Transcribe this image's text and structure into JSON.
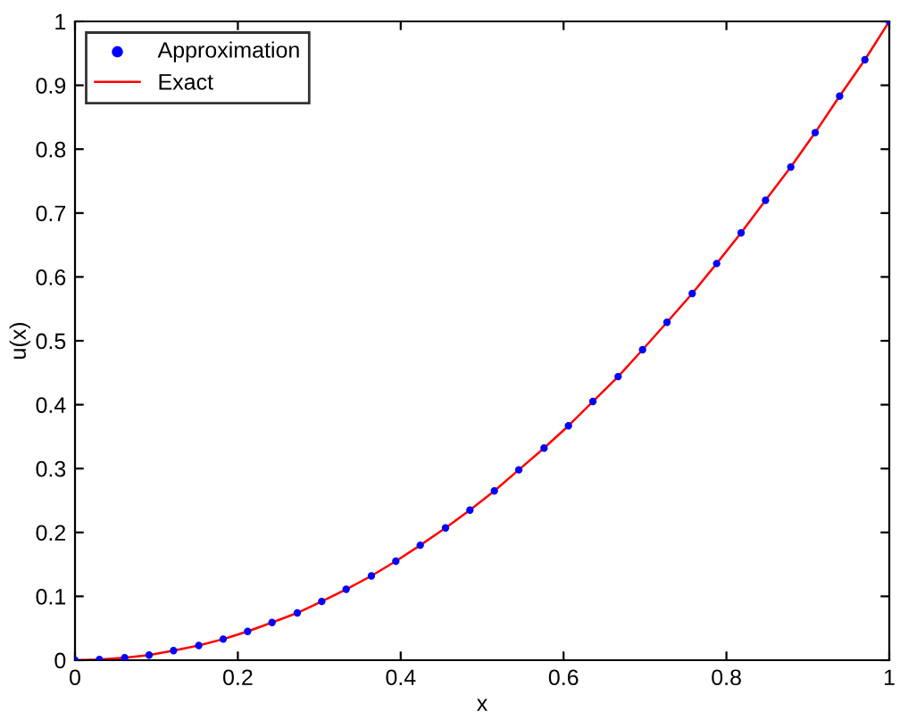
{
  "chart_data": {
    "type": "line",
    "xlabel": "x",
    "ylabel": "u(x)",
    "xlim": [
      0,
      1
    ],
    "xticks": [
      0,
      0.2,
      0.4,
      0.6,
      0.8,
      1
    ],
    "ylim": [
      0,
      1
    ],
    "yticks": [
      0,
      0.1,
      0.2,
      0.3,
      0.4,
      0.5,
      0.6,
      0.7,
      0.8,
      0.9,
      1
    ],
    "grid": false,
    "legend": "top left",
    "x": [
      0,
      0.03,
      0.061,
      0.091,
      0.121,
      0.152,
      0.182,
      0.212,
      0.242,
      0.273,
      0.303,
      0.333,
      0.364,
      0.394,
      0.424,
      0.455,
      0.485,
      0.515,
      0.545,
      0.576,
      0.606,
      0.636,
      0.667,
      0.697,
      0.727,
      0.758,
      0.788,
      0.818,
      0.848,
      0.879,
      0.909,
      0.939,
      0.97,
      1
    ],
    "series": [
      {
        "name": "Approximation",
        "type": "scatter",
        "marker": "circle",
        "color": "#0000ff",
        "values": [
          0,
          0.001,
          0.004,
          0.008,
          0.015,
          0.023,
          0.033,
          0.045,
          0.059,
          0.074,
          0.092,
          0.111,
          0.132,
          0.155,
          0.18,
          0.207,
          0.235,
          0.265,
          0.298,
          0.332,
          0.367,
          0.405,
          0.444,
          0.486,
          0.529,
          0.574,
          0.621,
          0.669,
          0.72,
          0.772,
          0.826,
          0.883,
          0.94,
          1
        ]
      },
      {
        "name": "Exact",
        "line_style": "solid",
        "color": "#ff0000",
        "values": [
          0,
          0.001,
          0.004,
          0.008,
          0.015,
          0.023,
          0.033,
          0.045,
          0.059,
          0.074,
          0.092,
          0.111,
          0.132,
          0.155,
          0.18,
          0.207,
          0.235,
          0.265,
          0.298,
          0.332,
          0.367,
          0.405,
          0.444,
          0.486,
          0.529,
          0.574,
          0.621,
          0.669,
          0.72,
          0.772,
          0.826,
          0.883,
          0.94,
          1
        ]
      }
    ]
  }
}
